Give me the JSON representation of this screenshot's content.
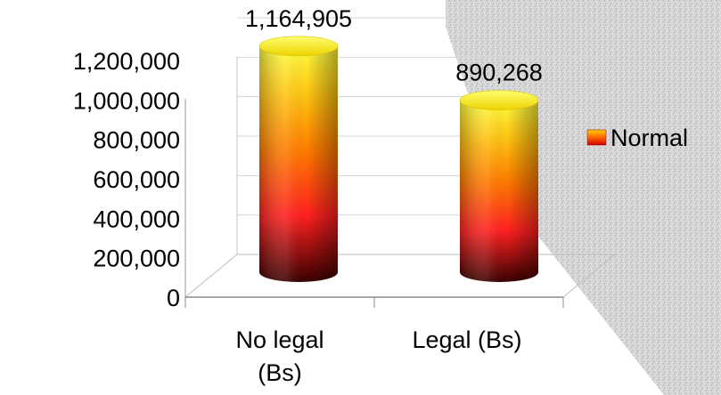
{
  "chart_data": {
    "type": "bar",
    "style": "3d-cylinder",
    "categories": [
      "No legal (Bs)",
      "Legal (Bs)"
    ],
    "category_lines": [
      [
        "No legal",
        "(Bs)"
      ],
      [
        "Legal (Bs)"
      ]
    ],
    "series": [
      {
        "name": "Normal",
        "values": [
          1164905,
          890268
        ]
      }
    ],
    "data_labels": [
      "1,164,905",
      "890,268"
    ],
    "title": "",
    "xlabel": "",
    "ylabel": "",
    "ylim": [
      0,
      1200000
    ],
    "yticks": [
      0,
      200000,
      400000,
      600000,
      800000,
      1000000,
      1200000
    ],
    "ytick_labels": [
      "0",
      "200,000",
      "400,000",
      "600,000",
      "800,000",
      "1,000,000",
      "1,200,000"
    ],
    "grid": true,
    "legend_position": "right",
    "colors": {
      "top": "#ffff33",
      "middle": "#ff2a1a",
      "bottom": "#2a0000",
      "legend_top": "#ffcc00",
      "legend_bottom": "#cc0000"
    }
  },
  "background": {
    "texture": "granite",
    "color": "#d9d9d9"
  }
}
